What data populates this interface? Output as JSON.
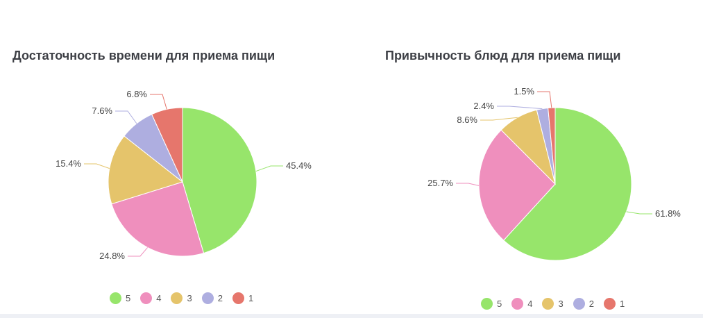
{
  "colors": {
    "5": "#97e56b",
    "4": "#ef8fbd",
    "3": "#e5c46b",
    "2": "#aeaee0",
    "1": "#e6766c"
  },
  "chart_data": [
    {
      "type": "pie",
      "title": "Достаточность времени для приема пищи",
      "categories": [
        "5",
        "4",
        "3",
        "2",
        "1"
      ],
      "values": [
        45.4,
        24.8,
        15.4,
        7.6,
        6.8
      ],
      "labels": [
        "45.4%",
        "24.8%",
        "15.4%",
        "7.6%",
        "6.8%"
      ],
      "legend_position": "bottom"
    },
    {
      "type": "pie",
      "title": "Привычность блюд для приема пищи",
      "categories": [
        "5",
        "4",
        "3",
        "2",
        "1"
      ],
      "values": [
        61.8,
        25.7,
        8.6,
        2.4,
        1.5
      ],
      "labels": [
        "61.8%",
        "25.7%",
        "8.6%",
        "2.4%",
        "1.5%"
      ],
      "legend_position": "bottom"
    }
  ]
}
